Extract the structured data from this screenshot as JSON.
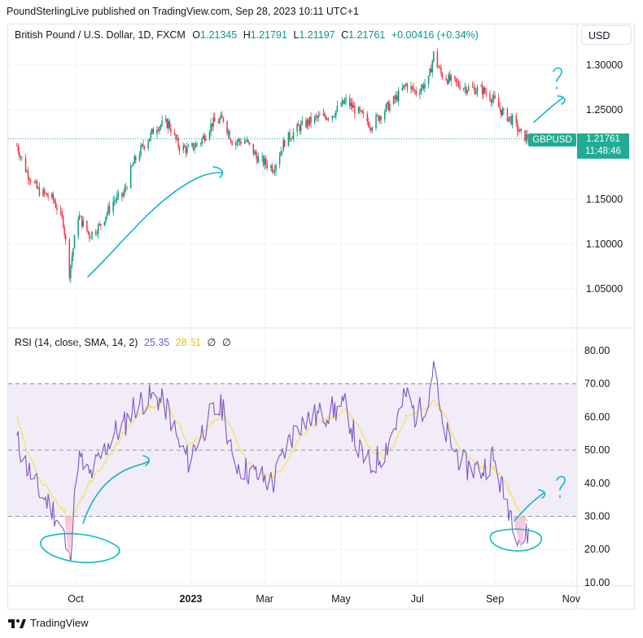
{
  "caption": "PoundSterlingLive published on TradingView.com, Sep 28, 2023 10:11 UTC+1",
  "legend": {
    "instrument": "British Pound / U.S. Dollar, 1D, FXCM",
    "o_label": "O",
    "o": "1.21345",
    "h_label": "H",
    "h": "1.21791",
    "l_label": "L",
    "l": "1.21197",
    "c_label": "C",
    "c": "1.21761",
    "change": "+0.00416 (+0.34%)"
  },
  "currency": "USD",
  "last_price": {
    "symbol": "GBPUSD",
    "value": "1.21761",
    "countdown": "11:48:46"
  },
  "rsi_legend": {
    "name": "RSI (14, close, SMA, 14, 2)",
    "rsi": "25.35",
    "ma": "28.61",
    "na1": "∅",
    "na2": "∅"
  },
  "footer": {
    "brand": "TradingView"
  },
  "colors": {
    "up": "#089981",
    "down": "#f23645",
    "rsi": "#7e57c2",
    "rsi_ma": "#f7e15d",
    "annotation": "#10b5c8",
    "band": "#ede7f6"
  },
  "chart_data": [
    {
      "type": "candlestick",
      "symbol": "GBPUSD",
      "timeframe": "1D",
      "x_tick_labels": [
        "Oct",
        "2023",
        "Mar",
        "May",
        "Jul",
        "Sep",
        "Nov"
      ],
      "y_tick_labels": [
        "1.30000",
        "1.25000",
        "1.15000",
        "1.10000",
        "1.05000"
      ],
      "ylim": [
        1.005,
        1.325
      ],
      "grid": true,
      "last_close": 1.21761,
      "close_path": [
        [
          "2022-08-15",
          1.21
        ],
        [
          "2022-08-23",
          1.18
        ],
        [
          "2022-09-01",
          1.16
        ],
        [
          "2022-09-13",
          1.15
        ],
        [
          "2022-09-21",
          1.125
        ],
        [
          "2022-09-26",
          1.068
        ],
        [
          "2022-10-03",
          1.132
        ],
        [
          "2022-10-12",
          1.11
        ],
        [
          "2022-10-20",
          1.12
        ],
        [
          "2022-10-31",
          1.148
        ],
        [
          "2022-11-08",
          1.155
        ],
        [
          "2022-11-16",
          1.19
        ],
        [
          "2022-11-24",
          1.21
        ],
        [
          "2022-12-05",
          1.232
        ],
        [
          "2022-12-14",
          1.235
        ],
        [
          "2022-12-22",
          1.21
        ],
        [
          "2022-12-30",
          1.205
        ],
        [
          "2023-01-09",
          1.215
        ],
        [
          "2023-01-18",
          1.235
        ],
        [
          "2023-01-27",
          1.24
        ],
        [
          "2023-02-03",
          1.215
        ],
        [
          "2023-02-14",
          1.215
        ],
        [
          "2023-02-24",
          1.195
        ],
        [
          "2023-03-08",
          1.185
        ],
        [
          "2023-03-17",
          1.215
        ],
        [
          "2023-03-28",
          1.23
        ],
        [
          "2023-04-10",
          1.24
        ],
        [
          "2023-04-24",
          1.245
        ],
        [
          "2023-05-05",
          1.26
        ],
        [
          "2023-05-15",
          1.247
        ],
        [
          "2023-05-25",
          1.233
        ],
        [
          "2023-06-05",
          1.25
        ],
        [
          "2023-06-14",
          1.263
        ],
        [
          "2023-06-22",
          1.278
        ],
        [
          "2023-06-30",
          1.27
        ],
        [
          "2023-07-10",
          1.283
        ],
        [
          "2023-07-14",
          1.312
        ],
        [
          "2023-07-20",
          1.29
        ],
        [
          "2023-07-28",
          1.282
        ],
        [
          "2023-08-08",
          1.275
        ],
        [
          "2023-08-22",
          1.272
        ],
        [
          "2023-08-30",
          1.263
        ],
        [
          "2023-09-07",
          1.247
        ],
        [
          "2023-09-15",
          1.238
        ],
        [
          "2023-09-22",
          1.222
        ],
        [
          "2023-09-28",
          1.218
        ]
      ]
    },
    {
      "type": "line",
      "indicator": "RSI",
      "y_tick_labels": [
        "80.00",
        "70.00",
        "60.00",
        "50.00",
        "40.00",
        "30.00",
        "20.00",
        "10.00"
      ],
      "ylim": [
        10,
        80
      ],
      "band": [
        30,
        70
      ],
      "dashed_levels": [
        70,
        50,
        30
      ],
      "series": [
        {
          "key": "rsi",
          "values": [
            [
              "2022-08-15",
              53
            ],
            [
              "2022-08-23",
              45
            ],
            [
              "2022-09-01",
              38
            ],
            [
              "2022-09-13",
              32
            ],
            [
              "2022-09-21",
              25
            ],
            [
              "2022-09-26",
              16
            ],
            [
              "2022-10-03",
              48
            ],
            [
              "2022-10-12",
              42
            ],
            [
              "2022-10-20",
              47
            ],
            [
              "2022-10-31",
              55
            ],
            [
              "2022-11-08",
              57
            ],
            [
              "2022-11-16",
              63
            ],
            [
              "2022-11-24",
              65
            ],
            [
              "2022-12-05",
              66
            ],
            [
              "2022-12-14",
              62
            ],
            [
              "2022-12-22",
              52
            ],
            [
              "2022-12-30",
              47
            ],
            [
              "2023-01-09",
              55
            ],
            [
              "2023-01-18",
              61
            ],
            [
              "2023-01-27",
              63
            ],
            [
              "2023-02-03",
              47
            ],
            [
              "2023-02-14",
              44
            ],
            [
              "2023-02-24",
              42
            ],
            [
              "2023-03-08",
              40
            ],
            [
              "2023-03-17",
              50
            ],
            [
              "2023-03-28",
              58
            ],
            [
              "2023-04-10",
              60
            ],
            [
              "2023-04-24",
              62
            ],
            [
              "2023-05-05",
              63
            ],
            [
              "2023-05-15",
              50
            ],
            [
              "2023-05-25",
              45
            ],
            [
              "2023-06-05",
              50
            ],
            [
              "2023-06-14",
              58
            ],
            [
              "2023-06-22",
              67
            ],
            [
              "2023-06-30",
              60
            ],
            [
              "2023-07-10",
              66
            ],
            [
              "2023-07-14",
              77
            ],
            [
              "2023-07-20",
              58
            ],
            [
              "2023-07-28",
              52
            ],
            [
              "2023-08-08",
              45
            ],
            [
              "2023-08-22",
              44
            ],
            [
              "2023-08-30",
              48
            ],
            [
              "2023-09-07",
              38
            ],
            [
              "2023-09-15",
              30
            ],
            [
              "2023-09-22",
              22
            ],
            [
              "2023-09-28",
              25
            ]
          ]
        },
        {
          "key": "rsi_ma",
          "values": [
            [
              "2022-08-15",
              60
            ],
            [
              "2022-08-23",
              50
            ],
            [
              "2022-09-01",
              42
            ],
            [
              "2022-09-13",
              36
            ],
            [
              "2022-09-21",
              32
            ],
            [
              "2022-09-26",
              29
            ],
            [
              "2022-10-03",
              33
            ],
            [
              "2022-10-12",
              40
            ],
            [
              "2022-10-20",
              44
            ],
            [
              "2022-10-31",
              50
            ],
            [
              "2022-11-08",
              55
            ],
            [
              "2022-11-16",
              59
            ],
            [
              "2022-11-24",
              62
            ],
            [
              "2022-12-05",
              64
            ],
            [
              "2022-12-14",
              63
            ],
            [
              "2022-12-22",
              58
            ],
            [
              "2022-12-30",
              52
            ],
            [
              "2023-01-09",
              54
            ],
            [
              "2023-01-18",
              58
            ],
            [
              "2023-01-27",
              61
            ],
            [
              "2023-02-03",
              56
            ],
            [
              "2023-02-14",
              47
            ],
            [
              "2023-02-24",
              43
            ],
            [
              "2023-03-08",
              42
            ],
            [
              "2023-03-17",
              45
            ],
            [
              "2023-03-28",
              53
            ],
            [
              "2023-04-10",
              58
            ],
            [
              "2023-04-24",
              60
            ],
            [
              "2023-05-05",
              62
            ],
            [
              "2023-05-15",
              57
            ],
            [
              "2023-05-25",
              50
            ],
            [
              "2023-06-05",
              48
            ],
            [
              "2023-06-14",
              53
            ],
            [
              "2023-06-22",
              60
            ],
            [
              "2023-06-30",
              62
            ],
            [
              "2023-07-10",
              63
            ],
            [
              "2023-07-14",
              65
            ],
            [
              "2023-07-20",
              63
            ],
            [
              "2023-07-28",
              56
            ],
            [
              "2023-08-08",
              48
            ],
            [
              "2023-08-22",
              45
            ],
            [
              "2023-08-30",
              45
            ],
            [
              "2023-09-07",
              42
            ],
            [
              "2023-09-15",
              36
            ],
            [
              "2023-09-22",
              30
            ],
            [
              "2023-09-28",
              28.61
            ]
          ]
        }
      ]
    }
  ]
}
